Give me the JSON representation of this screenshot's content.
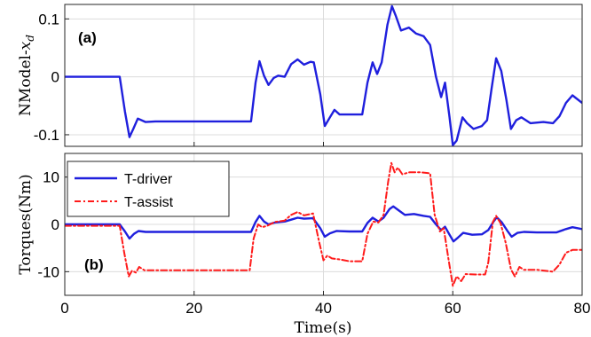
{
  "chart_data": [
    {
      "type": "line",
      "panel_label": "(a)",
      "ylabel_text": "NModel-",
      "ylabel_sym": "x",
      "ylabel_sub": "d",
      "xlim": [
        0,
        80
      ],
      "ylim": [
        -0.12,
        0.125
      ],
      "x_ticks": [
        0,
        20,
        40,
        60,
        80
      ],
      "y_ticks": [
        -0.1,
        0,
        0.1
      ],
      "y_tick_labels": [
        "-0.1",
        "0",
        "0.1"
      ],
      "grid": true,
      "series": [
        {
          "color": "#1f1fdd",
          "dash": "solid",
          "points": [
            [
              0,
              0
            ],
            [
              8.5,
              0
            ],
            [
              9.3,
              -0.06
            ],
            [
              10.0,
              -0.104
            ],
            [
              10.6,
              -0.09
            ],
            [
              11.3,
              -0.072
            ],
            [
              12.5,
              -0.078
            ],
            [
              14,
              -0.077
            ],
            [
              20,
              -0.077
            ],
            [
              28.8,
              -0.077
            ],
            [
              29.5,
              -0.01
            ],
            [
              30.1,
              0.027
            ],
            [
              30.8,
              0.002
            ],
            [
              31.5,
              -0.014
            ],
            [
              32.3,
              -0.002
            ],
            [
              33,
              0.002
            ],
            [
              34,
              0.0
            ],
            [
              35,
              0.022
            ],
            [
              36,
              0.03
            ],
            [
              37,
              0.021
            ],
            [
              38,
              0.026
            ],
            [
              38.5,
              0.025
            ],
            [
              39.5,
              -0.03
            ],
            [
              40.2,
              -0.085
            ],
            [
              41,
              -0.07
            ],
            [
              41.7,
              -0.057
            ],
            [
              42.5,
              -0.065
            ],
            [
              44,
              -0.065
            ],
            [
              46,
              -0.065
            ],
            [
              46.8,
              -0.01
            ],
            [
              47.6,
              0.025
            ],
            [
              48.3,
              0.005
            ],
            [
              49,
              0.025
            ],
            [
              49.9,
              0.09
            ],
            [
              50.6,
              0.122
            ],
            [
              51.2,
              0.105
            ],
            [
              52.0,
              0.08
            ],
            [
              53.2,
              0.085
            ],
            [
              54.3,
              0.075
            ],
            [
              55.5,
              0.07
            ],
            [
              56.5,
              0.055
            ],
            [
              57.4,
              0.0
            ],
            [
              58.2,
              -0.035
            ],
            [
              58.8,
              -0.01
            ],
            [
              59.5,
              -0.07
            ],
            [
              60.0,
              -0.118
            ],
            [
              60.6,
              -0.11
            ],
            [
              61.5,
              -0.07
            ],
            [
              62.2,
              -0.08
            ],
            [
              63.2,
              -0.09
            ],
            [
              64.5,
              -0.085
            ],
            [
              65.3,
              -0.075
            ],
            [
              66.0,
              -0.02
            ],
            [
              66.7,
              0.032
            ],
            [
              67.5,
              0.01
            ],
            [
              68.3,
              -0.04
            ],
            [
              69.0,
              -0.09
            ],
            [
              69.8,
              -0.075
            ],
            [
              70.6,
              -0.07
            ],
            [
              72,
              -0.08
            ],
            [
              74,
              -0.078
            ],
            [
              75.5,
              -0.08
            ],
            [
              76.5,
              -0.068
            ],
            [
              77.5,
              -0.045
            ],
            [
              78.5,
              -0.032
            ],
            [
              80,
              -0.045
            ]
          ]
        }
      ]
    },
    {
      "type": "line",
      "panel_label": "(b)",
      "ylabel": "Torques(Nm)",
      "xlabel": "Time(s)",
      "xlim": [
        0,
        80
      ],
      "ylim": [
        -15,
        15
      ],
      "x_ticks": [
        0,
        20,
        40,
        60,
        80
      ],
      "y_ticks": [
        -10,
        0,
        10
      ],
      "grid": true,
      "legend_position": "top-left",
      "series": [
        {
          "name": "T-driver",
          "color": "#1f1fdd",
          "dash": "solid",
          "points": [
            [
              0,
              0
            ],
            [
              8.5,
              0
            ],
            [
              9.3,
              -1.5
            ],
            [
              10.0,
              -3.0
            ],
            [
              10.7,
              -2.0
            ],
            [
              11.4,
              -1.4
            ],
            [
              12.5,
              -1.6
            ],
            [
              14,
              -1.6
            ],
            [
              20,
              -1.6
            ],
            [
              28.8,
              -1.6
            ],
            [
              29.5,
              0.5
            ],
            [
              30.1,
              1.8
            ],
            [
              30.8,
              0.6
            ],
            [
              31.5,
              0.0
            ],
            [
              32.5,
              0.4
            ],
            [
              34,
              0.6
            ],
            [
              35,
              1.0
            ],
            [
              36,
              1.4
            ],
            [
              37,
              1.2
            ],
            [
              38.4,
              1.3
            ],
            [
              39.5,
              -0.8
            ],
            [
              40.2,
              -2.6
            ],
            [
              41,
              -1.9
            ],
            [
              42,
              -1.4
            ],
            [
              44,
              -1.5
            ],
            [
              46,
              -1.5
            ],
            [
              46.8,
              0.3
            ],
            [
              47.6,
              1.4
            ],
            [
              48.5,
              0.6
            ],
            [
              49.3,
              1.4
            ],
            [
              50.2,
              3.2
            ],
            [
              50.8,
              3.8
            ],
            [
              51.6,
              3.0
            ],
            [
              52.6,
              2.0
            ],
            [
              54,
              2.2
            ],
            [
              55.5,
              1.8
            ],
            [
              56.5,
              1.6
            ],
            [
              57.4,
              0.0
            ],
            [
              58.2,
              -1.2
            ],
            [
              58.8,
              -0.5
            ],
            [
              59.5,
              -2.2
            ],
            [
              60.1,
              -3.6
            ],
            [
              60.8,
              -2.8
            ],
            [
              61.6,
              -1.8
            ],
            [
              63,
              -2.2
            ],
            [
              64.5,
              -2.1
            ],
            [
              65.5,
              -1.2
            ],
            [
              66.3,
              0.6
            ],
            [
              66.8,
              1.5
            ],
            [
              67.6,
              0.4
            ],
            [
              68.4,
              -1.3
            ],
            [
              69.1,
              -2.6
            ],
            [
              70,
              -1.8
            ],
            [
              71,
              -1.6
            ],
            [
              73,
              -1.7
            ],
            [
              76,
              -1.7
            ],
            [
              77.5,
              -1.0
            ],
            [
              78.5,
              -0.6
            ],
            [
              80,
              -1.0
            ]
          ]
        },
        {
          "name": "T-assist",
          "color": "#ff1a1a",
          "dash": "dashdot",
          "points": [
            [
              0,
              -0.3
            ],
            [
              8.5,
              -0.3
            ],
            [
              9.2,
              -6.0
            ],
            [
              9.9,
              -11.0
            ],
            [
              10.4,
              -9.8
            ],
            [
              11.0,
              -10.2
            ],
            [
              11.5,
              -9.0
            ],
            [
              12.3,
              -9.7
            ],
            [
              14,
              -9.7
            ],
            [
              20,
              -9.7
            ],
            [
              28.6,
              -9.7
            ],
            [
              29.2,
              -3.0
            ],
            [
              29.9,
              0.0
            ],
            [
              30.5,
              -0.6
            ],
            [
              31.3,
              -0.3
            ],
            [
              32.5,
              0.5
            ],
            [
              34,
              0.8
            ],
            [
              35,
              2.0
            ],
            [
              36,
              2.6
            ],
            [
              37,
              1.9
            ],
            [
              38.4,
              2.3
            ],
            [
              39.3,
              -3.5
            ],
            [
              40.0,
              -7.6
            ],
            [
              40.6,
              -6.6
            ],
            [
              41.3,
              -7.2
            ],
            [
              42.5,
              -7.4
            ],
            [
              44,
              -7.8
            ],
            [
              46,
              -7.8
            ],
            [
              46.8,
              -2.0
            ],
            [
              47.7,
              0.6
            ],
            [
              48.5,
              0.4
            ],
            [
              49.3,
              2.0
            ],
            [
              50.0,
              9.0
            ],
            [
              50.5,
              13.0
            ],
            [
              51.0,
              11.0
            ],
            [
              51.5,
              12.0
            ],
            [
              52.2,
              10.6
            ],
            [
              53.3,
              11.0
            ],
            [
              55,
              11.0
            ],
            [
              56.5,
              10.8
            ],
            [
              57.2,
              2.0
            ],
            [
              58.0,
              -1.5
            ],
            [
              58.6,
              -0.8
            ],
            [
              59.3,
              -7.0
            ],
            [
              60.0,
              -13.0
            ],
            [
              60.6,
              -11.0
            ],
            [
              61.3,
              -12.0
            ],
            [
              62.0,
              -10.5
            ],
            [
              63.5,
              -10.6
            ],
            [
              65,
              -10.6
            ],
            [
              65.5,
              -8.0
            ],
            [
              66.2,
              0.5
            ],
            [
              66.7,
              1.8
            ],
            [
              67.4,
              0.2
            ],
            [
              68.2,
              -4.0
            ],
            [
              69.0,
              -9.5
            ],
            [
              69.6,
              -11.0
            ],
            [
              70.3,
              -9.0
            ],
            [
              71,
              -9.6
            ],
            [
              73,
              -9.6
            ],
            [
              75.5,
              -10.0
            ],
            [
              76.5,
              -8.5
            ],
            [
              77.5,
              -6.0
            ],
            [
              78.5,
              -5.4
            ],
            [
              80,
              -5.4
            ]
          ]
        }
      ]
    }
  ]
}
